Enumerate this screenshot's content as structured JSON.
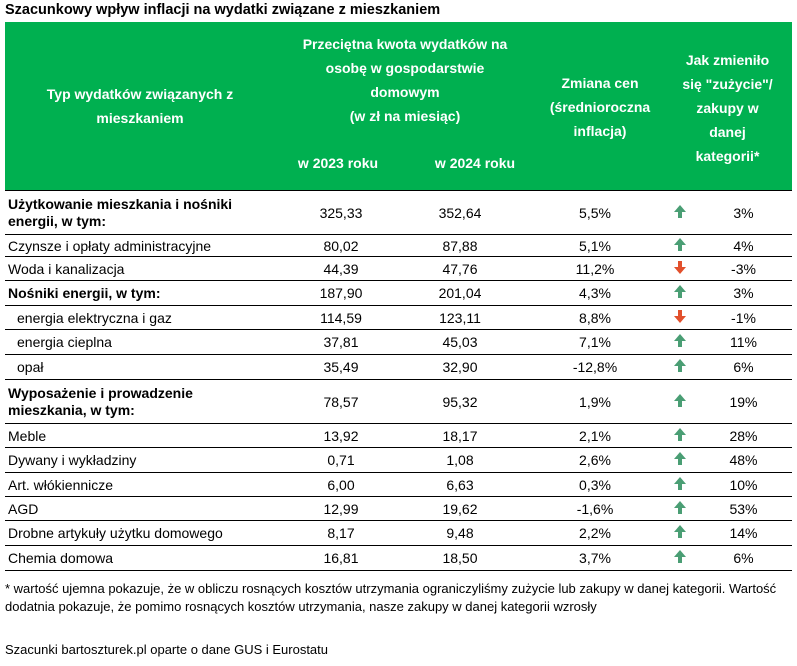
{
  "title": "Szacunkowy wpływ inflacji na wydatki związane z mieszkaniem",
  "header": {
    "type": "Typ wydatków związanych z mieszkaniem",
    "amount": [
      "Przeciętna kwota wydatków na",
      "osobę w gospodarstwie",
      "domowym",
      "(w zł na miesiąc)"
    ],
    "year2023": "w 2023 roku",
    "year2024": "w 2024 roku",
    "price_change": [
      "Zmiana cen",
      "(średnioroczna",
      "inflacja)"
    ],
    "usage_change": [
      "Jak zmieniło",
      "się \"zużycie\"/",
      "zakupy w",
      "danej",
      "kategorii*"
    ]
  },
  "table": {
    "rows": [
      [
        "Użytkowanie mieszkania i nośniki energii, w tym:",
        "325,33",
        "352,64",
        "5,5%",
        "3%"
      ],
      [
        "Czynsze i opłaty administracyjne",
        "80,02",
        "87,88",
        "5,1%",
        "4%"
      ],
      [
        "Woda i kanalizacja",
        "44,39",
        "47,76",
        "11,2%",
        "-3%"
      ],
      [
        "Nośniki energii, w tym:",
        "187,90",
        "201,04",
        "4,3%",
        "3%"
      ],
      [
        "energia elektryczna i gaz",
        "114,59",
        "123,11",
        "8,8%",
        "-1%"
      ],
      [
        "energia cieplna",
        "37,81",
        "45,03",
        "7,1%",
        "11%"
      ],
      [
        "opał",
        "35,49",
        "32,90",
        "-12,8%",
        "6%"
      ],
      [
        "Wyposażenie i prowadzenie mieszkania, w tym:",
        "78,57",
        "95,32",
        "1,9%",
        "19%"
      ],
      [
        "Meble",
        "13,92",
        "18,17",
        "2,1%",
        "28%"
      ],
      [
        "Dywany i wykładziny",
        "0,71",
        "1,08",
        "2,6%",
        "48%"
      ],
      [
        "Art. włókiennicze",
        "6,00",
        "6,63",
        "0,3%",
        "10%"
      ],
      [
        "AGD",
        "12,99",
        "19,62",
        "-1,6%",
        "53%"
      ],
      [
        "Drobne artykuły użytku domowego",
        "8,17",
        "9,48",
        "2,2%",
        "14%"
      ],
      [
        "Chemia domowa",
        "16,81",
        "18,50",
        "3,7%",
        "6%"
      ]
    ]
  },
  "footnote": "* wartość ujemna pokazuje, że w obliczu rosnących kosztów utrzymania ograniczyliśmy zużycie lub zakupy w danej kategorii. Wartość dodatnia pokazuje, że pomimo rosnących kosztów utrzymania, nasze zakupy w danej kategorii wzrosły",
  "source": "Szacunki bartoszturek.pl oparte o dane GUS i Eurostatu"
}
